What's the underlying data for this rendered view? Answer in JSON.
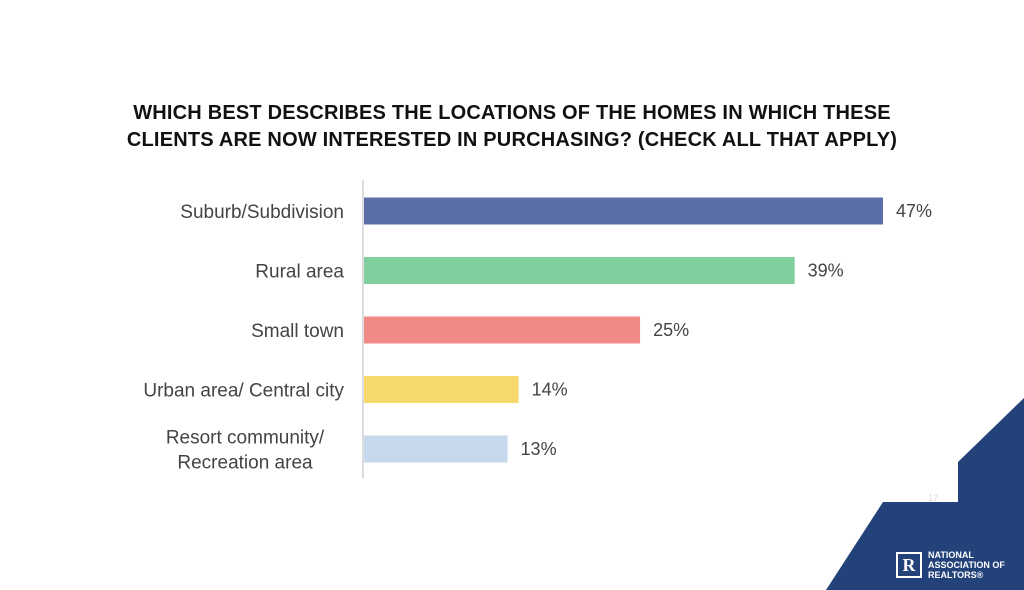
{
  "chart_data": {
    "type": "bar",
    "orientation": "horizontal",
    "title_lines": [
      "WHICH BEST DESCRIBES THE LOCATIONS OF THE HOMES IN WHICH THESE",
      "CLIENTS ARE NOW INTERESTED IN PURCHASING? (CHECK ALL THAT APPLY)"
    ],
    "categories": [
      [
        "Suburb/Subdivision"
      ],
      [
        "Rural area"
      ],
      [
        "Small town"
      ],
      [
        "Urban area/ Central city"
      ],
      [
        "Resort community/",
        "Recreation area"
      ]
    ],
    "values": [
      47,
      39,
      25,
      14,
      13
    ],
    "value_labels": [
      "47%",
      "39%",
      "25%",
      "14%",
      "13%"
    ],
    "colors": [
      "#5b6ea8",
      "#7fcf9f",
      "#f08a87",
      "#f7d96b",
      "#c6d8ec"
    ],
    "xlim": [
      0,
      47
    ],
    "grid": false
  },
  "branding": {
    "logo_letter": "R",
    "logo_text": "NATIONAL\nASSOCIATION OF\nREALTORS®",
    "page_number": "17",
    "color": "#23427a"
  }
}
